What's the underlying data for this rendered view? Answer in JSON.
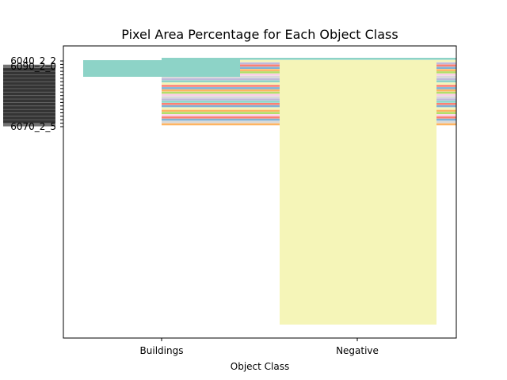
{
  "chart_data": {
    "type": "bar",
    "title": "Pixel Area Percentage for Each Object Class",
    "xlabel": "Object Class",
    "ylabel": "",
    "categories": [
      "Buildings",
      "Negative"
    ],
    "ytick_labels": [
      "6040_2_2",
      "6090_2_0",
      "6070_2_5"
    ],
    "colors": {
      "teal": "#8dd3c7",
      "yellow": "#f5f5b8",
      "red": "#fb8072",
      "blue": "#80b1d3",
      "orange": "#fdb462",
      "green": "#b3de69",
      "pink": "#fccde5",
      "gray": "#d9d9d9",
      "purple": "#bebada"
    }
  }
}
